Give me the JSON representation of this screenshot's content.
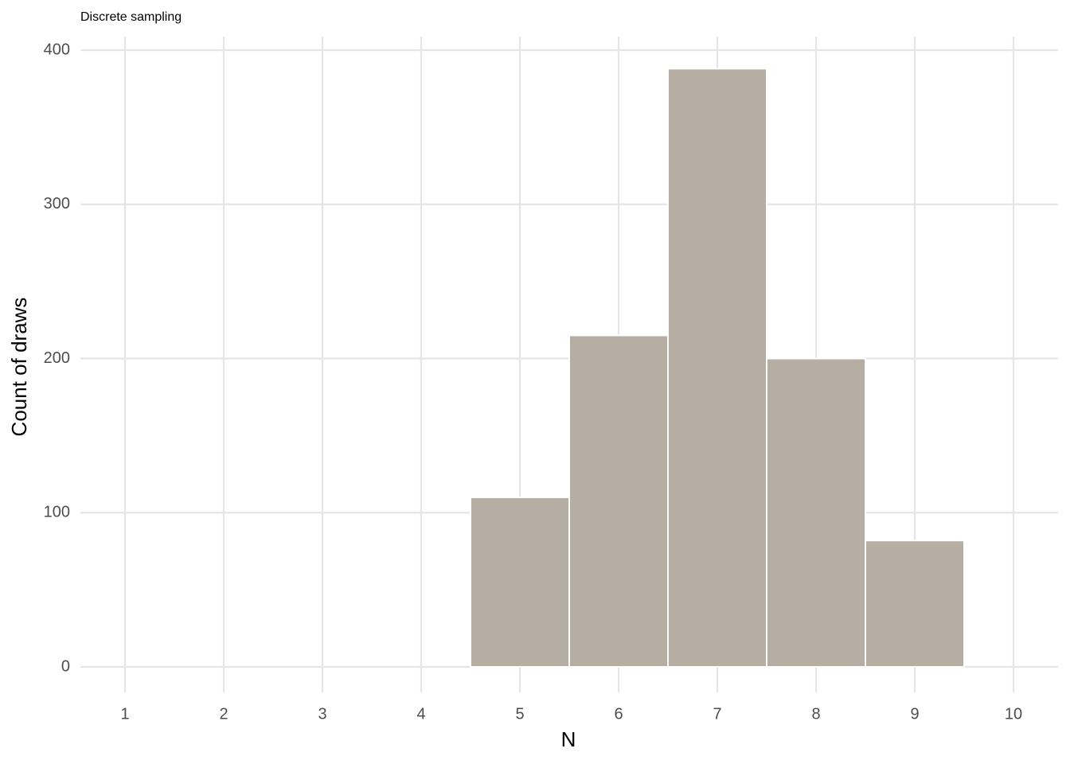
{
  "chart_data": {
    "type": "histogram",
    "title": "Discrete sampling",
    "x_label": "N",
    "y_label": "Count of draws",
    "bins": [
      4.5,
      5.5,
      6.5,
      7.5,
      8.5,
      9.5
    ],
    "values": [
      110,
      215,
      388,
      200,
      82
    ],
    "color": "#b6aea3",
    "xlim": [
      0.55,
      10.45
    ],
    "xticks": [
      1,
      2,
      3,
      4,
      5,
      6,
      7,
      8,
      9,
      10
    ],
    "ylim": [
      -19.4,
      407.4
    ],
    "yticks": [
      0,
      100,
      200,
      300,
      400
    ],
    "grid": true
  }
}
